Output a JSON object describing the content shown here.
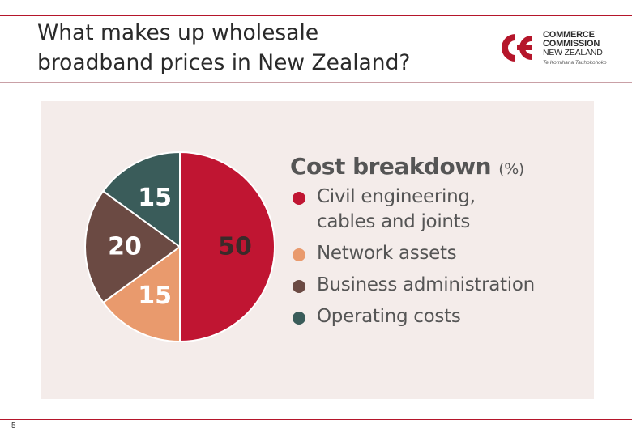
{
  "slide": {
    "title_line1": "What makes up wholesale",
    "title_line2": "broadband prices in New Zealand?",
    "number": "5",
    "accent_color": "#b5162b"
  },
  "logo": {
    "line1": "COMMERCE",
    "line2": "COMMISSION",
    "line3": "NEW ZEALAND",
    "line4": "Te Komihana Tauhokohoko"
  },
  "chart_data": {
    "type": "pie",
    "title": "Cost breakdown",
    "title_unit": "(%)",
    "slices": [
      {
        "label": "Civil engineering, cables and joints",
        "label_lines": [
          "Civil engineering,",
          "cables and joints"
        ],
        "value": 50,
        "color": "#c01532"
      },
      {
        "label": "Network assets",
        "label_lines": [
          "Network assets"
        ],
        "value": 15,
        "color": "#e99a6d"
      },
      {
        "label": "Business administration",
        "label_lines": [
          "Business administration"
        ],
        "value": 20,
        "color": "#6b4a43"
      },
      {
        "label": "Operating costs",
        "label_lines": [
          "Operating costs"
        ],
        "value": 15,
        "color": "#3a5c5a"
      }
    ],
    "start_angle": "12 o'clock",
    "direction": "clockwise"
  }
}
